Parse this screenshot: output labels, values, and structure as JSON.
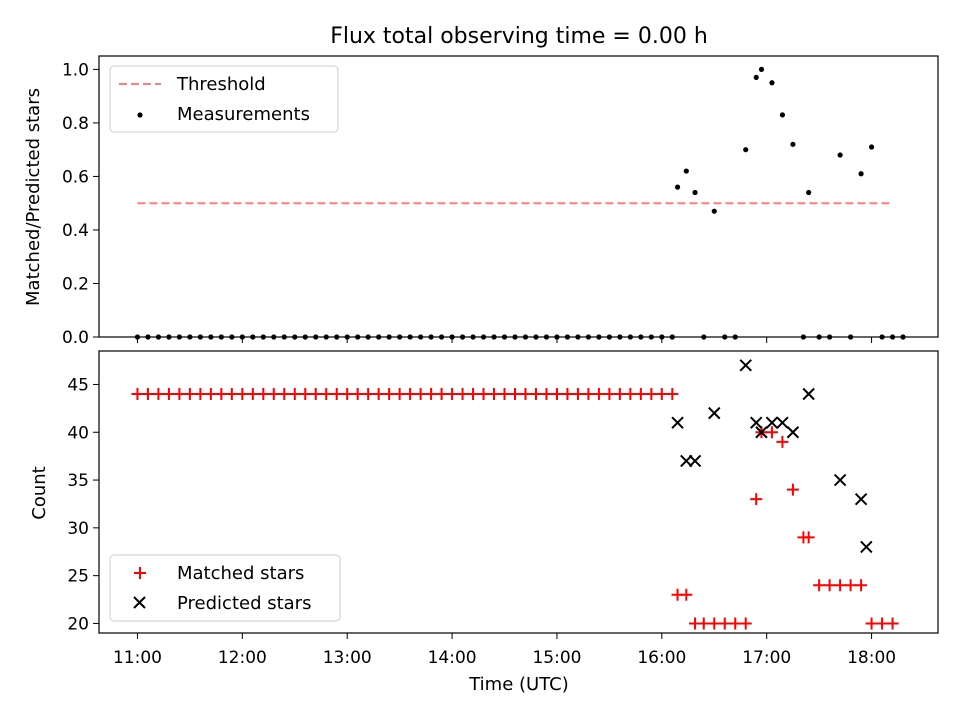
{
  "figure": {
    "title": "Flux total observing time = 0.00 h"
  },
  "chart_data": [
    {
      "type": "scatter",
      "panel": "top",
      "title": "Flux total observing time = 0.00 h",
      "xlabel": "",
      "ylabel": "Matched/Predicted stars",
      "xlim": [
        "10:38",
        "18:38"
      ],
      "ylim": [
        0.0,
        1.05
      ],
      "yticks": [
        "0.0",
        "0.2",
        "0.4",
        "0.6",
        "0.8",
        "1.0"
      ],
      "xticks": [
        "11:00",
        "12:00",
        "13:00",
        "14:00",
        "15:00",
        "16:00",
        "17:00",
        "18:00"
      ],
      "show_xticklabels": false,
      "legend": "top-left",
      "threshold": {
        "name": "Threshold",
        "y": 0.5,
        "x_start": "11:00",
        "x_end": "18:12",
        "color": "#ff7f7f",
        "style": "dashed"
      },
      "series": [
        {
          "name": "Measurements",
          "color": "#000000",
          "marker": "dot",
          "x": [
            "11:00",
            "11:06",
            "11:12",
            "11:18",
            "11:24",
            "11:30",
            "11:36",
            "11:42",
            "11:48",
            "11:54",
            "12:00",
            "12:06",
            "12:12",
            "12:18",
            "12:24",
            "12:30",
            "12:36",
            "12:42",
            "12:48",
            "12:54",
            "13:00",
            "13:06",
            "13:12",
            "13:18",
            "13:24",
            "13:30",
            "13:36",
            "13:42",
            "13:48",
            "13:54",
            "14:00",
            "14:06",
            "14:12",
            "14:18",
            "14:24",
            "14:30",
            "14:36",
            "14:42",
            "14:48",
            "14:54",
            "15:00",
            "15:06",
            "15:12",
            "15:18",
            "15:24",
            "15:30",
            "15:36",
            "15:42",
            "15:48",
            "15:54",
            "16:00",
            "16:06",
            "16:09",
            "16:14",
            "16:19",
            "16:24",
            "16:30",
            "16:36",
            "16:42",
            "16:48",
            "16:54",
            "16:57",
            "17:03",
            "17:09",
            "17:15",
            "17:21",
            "17:24",
            "17:30",
            "17:36",
            "17:42",
            "17:48",
            "17:54",
            "18:00",
            "18:06",
            "18:12",
            "18:18"
          ],
          "y": [
            0,
            0,
            0,
            0,
            0,
            0,
            0,
            0,
            0,
            0,
            0,
            0,
            0,
            0,
            0,
            0,
            0,
            0,
            0,
            0,
            0,
            0,
            0,
            0,
            0,
            0,
            0,
            0,
            0,
            0,
            0,
            0,
            0,
            0,
            0,
            0,
            0,
            0,
            0,
            0,
            0,
            0,
            0,
            0,
            0,
            0,
            0,
            0,
            0,
            0,
            0,
            0,
            0.56,
            0.62,
            0.54,
            0,
            0.47,
            0,
            0,
            0.7,
            0.97,
            1.0,
            0.95,
            0.83,
            0.72,
            0,
            0.54,
            0,
            0,
            0.68,
            0,
            0.61,
            0.71,
            0,
            0,
            0
          ]
        }
      ]
    },
    {
      "type": "scatter",
      "panel": "bottom",
      "xlabel": "Time (UTC)",
      "ylabel": "Count",
      "xlim": [
        "10:38",
        "18:38"
      ],
      "ylim": [
        19,
        48.5
      ],
      "yticks": [
        "20",
        "25",
        "30",
        "35",
        "40",
        "45"
      ],
      "xticks": [
        "11:00",
        "12:00",
        "13:00",
        "14:00",
        "15:00",
        "16:00",
        "17:00",
        "18:00"
      ],
      "legend": "bottom-left",
      "series": [
        {
          "name": "Matched stars",
          "color": "#ff0000",
          "marker": "plus",
          "x": [
            "11:00",
            "11:06",
            "11:12",
            "11:18",
            "11:24",
            "11:30",
            "11:36",
            "11:42",
            "11:48",
            "11:54",
            "12:00",
            "12:06",
            "12:12",
            "12:18",
            "12:24",
            "12:30",
            "12:36",
            "12:42",
            "12:48",
            "12:54",
            "13:00",
            "13:06",
            "13:12",
            "13:18",
            "13:24",
            "13:30",
            "13:36",
            "13:42",
            "13:48",
            "13:54",
            "14:00",
            "14:06",
            "14:12",
            "14:18",
            "14:24",
            "14:30",
            "14:36",
            "14:42",
            "14:48",
            "14:54",
            "15:00",
            "15:06",
            "15:12",
            "15:18",
            "15:24",
            "15:30",
            "15:36",
            "15:42",
            "15:48",
            "15:54",
            "16:00",
            "16:06",
            "16:09",
            "16:14",
            "16:19",
            "16:24",
            "16:30",
            "16:36",
            "16:42",
            "16:48",
            "16:54",
            "16:57",
            "17:03",
            "17:09",
            "17:15",
            "17:21",
            "17:24",
            "17:30",
            "17:36",
            "17:42",
            "17:48",
            "17:54",
            "18:00",
            "18:06",
            "18:12"
          ],
          "y": [
            44,
            44,
            44,
            44,
            44,
            44,
            44,
            44,
            44,
            44,
            44,
            44,
            44,
            44,
            44,
            44,
            44,
            44,
            44,
            44,
            44,
            44,
            44,
            44,
            44,
            44,
            44,
            44,
            44,
            44,
            44,
            44,
            44,
            44,
            44,
            44,
            44,
            44,
            44,
            44,
            44,
            44,
            44,
            44,
            44,
            44,
            44,
            44,
            44,
            44,
            44,
            44,
            23,
            23,
            20,
            20,
            20,
            20,
            20,
            20,
            33,
            40,
            40,
            39,
            34,
            29,
            29,
            24,
            24,
            24,
            24,
            24,
            20,
            20,
            20
          ]
        },
        {
          "name": "Predicted stars",
          "color": "#000000",
          "marker": "x",
          "x": [
            "16:09",
            "16:14",
            "16:19",
            "16:30",
            "16:48",
            "16:54",
            "16:57",
            "17:03",
            "17:09",
            "17:15",
            "17:24",
            "17:42",
            "17:54",
            "17:57"
          ],
          "y": [
            41,
            37,
            37,
            42,
            47,
            41,
            40,
            41,
            41,
            40,
            44,
            35,
            33,
            28
          ]
        }
      ]
    }
  ]
}
